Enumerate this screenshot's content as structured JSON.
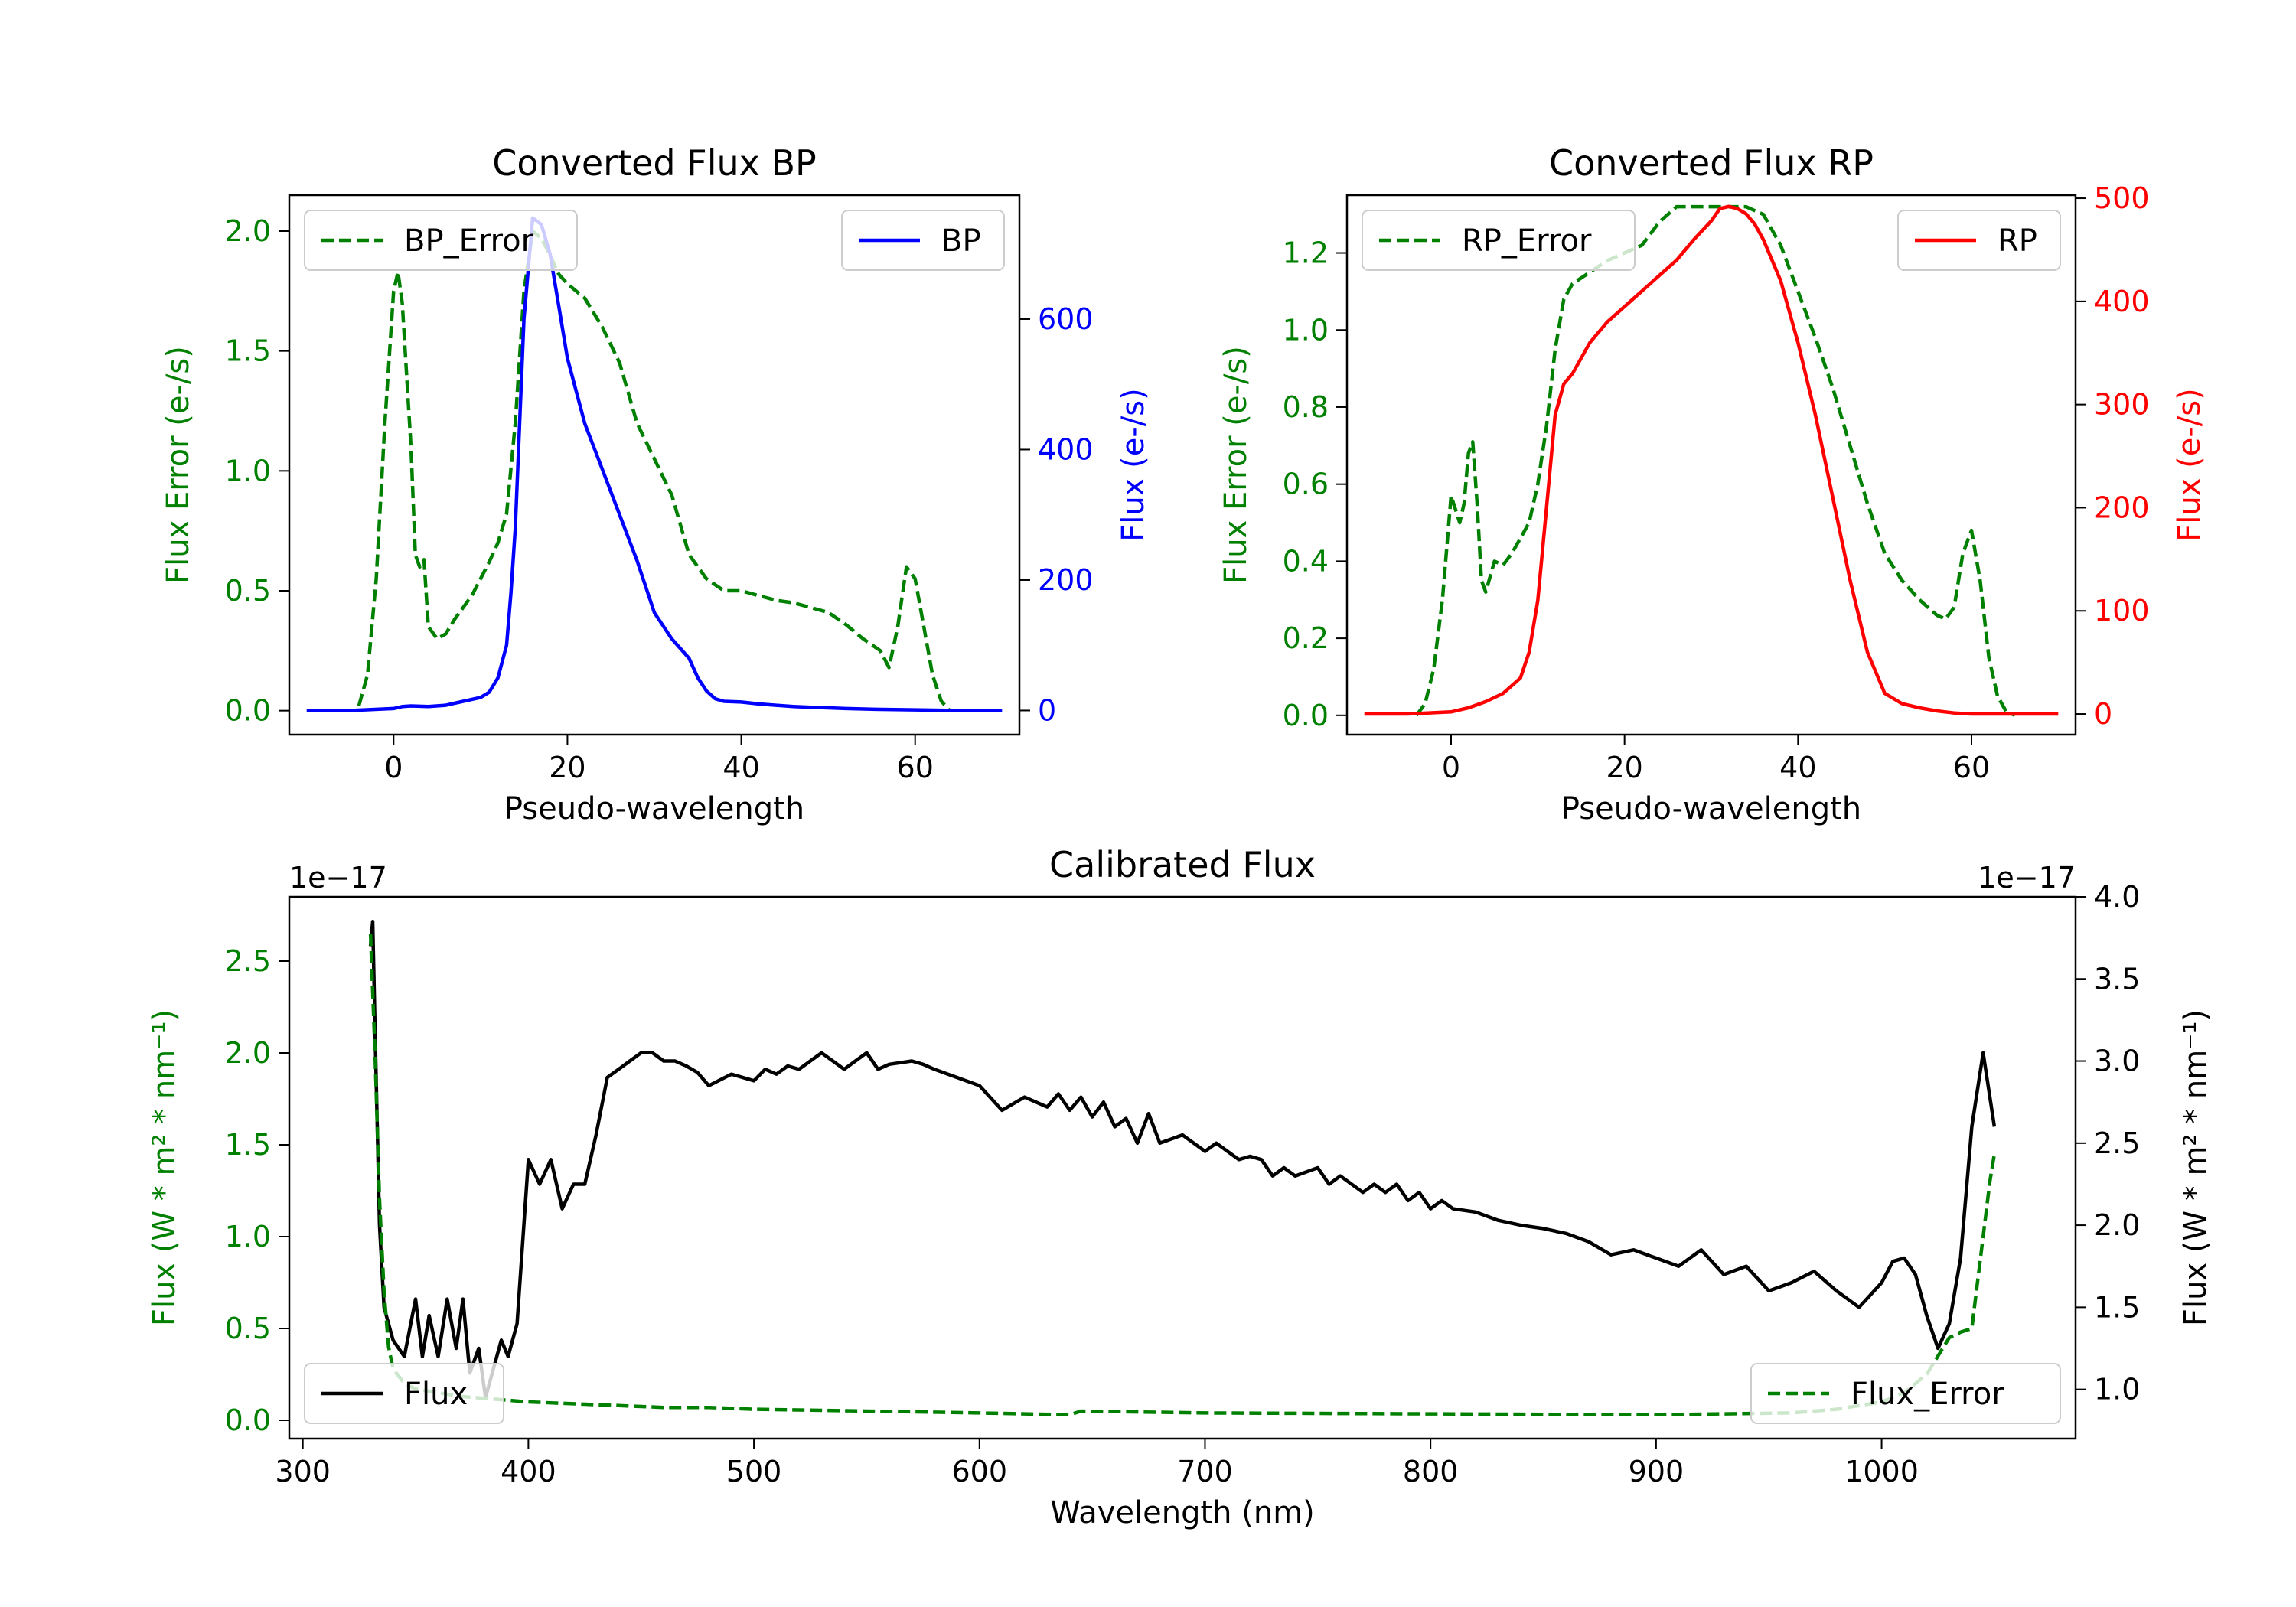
{
  "colors": {
    "bp": "#0000ff",
    "rp": "#ff0000",
    "error": "#008000",
    "flux": "#000000",
    "axis": "#000000"
  },
  "chart_data": [
    {
      "type": "line",
      "title": "Converted Flux BP",
      "xlabel": "Pseudo-wavelength",
      "ylabel_left": "Flux Error (e-/s)",
      "ylabel_right": "Flux (e-/s)",
      "xlim": [
        -12,
        72
      ],
      "ylim_left": [
        -0.1,
        2.15
      ],
      "ylim_right": [
        -37,
        790
      ],
      "xticks": [
        0,
        20,
        40,
        60
      ],
      "yticks_left": [
        "0.0",
        "0.5",
        "1.0",
        "1.5",
        "2.0"
      ],
      "yticks_left_values": [
        0.0,
        0.5,
        1.0,
        1.5,
        2.0
      ],
      "yticks_right": [
        "0",
        "200",
        "400",
        "600"
      ],
      "yticks_right_values": [
        0,
        200,
        400,
        600
      ],
      "legend_left": "BP_Error",
      "legend_right": "BP",
      "series": [
        {
          "name": "BP_Error",
          "axis": "left",
          "style": "dashed",
          "color": "#008000",
          "x": [
            -4,
            -3,
            -2,
            -1,
            0,
            0.5,
            1,
            2,
            2.5,
            3,
            3.5,
            4,
            5,
            6,
            7,
            8,
            9,
            10,
            11,
            12,
            13,
            14,
            15,
            16,
            17,
            18,
            19,
            20,
            22,
            24,
            26,
            28,
            30,
            32,
            34,
            36,
            38,
            40,
            42,
            44,
            46,
            48,
            50,
            52,
            54,
            56,
            57,
            58,
            59,
            60,
            61,
            62,
            63,
            64,
            65
          ],
          "y": [
            0.02,
            0.15,
            0.55,
            1.2,
            1.75,
            1.83,
            1.7,
            1.1,
            0.65,
            0.6,
            0.63,
            0.35,
            0.3,
            0.32,
            0.38,
            0.43,
            0.48,
            0.55,
            0.62,
            0.7,
            0.82,
            1.2,
            1.75,
            2.0,
            1.97,
            1.9,
            1.82,
            1.78,
            1.72,
            1.6,
            1.45,
            1.2,
            1.05,
            0.9,
            0.65,
            0.55,
            0.5,
            0.5,
            0.48,
            0.46,
            0.45,
            0.43,
            0.41,
            0.36,
            0.3,
            0.25,
            0.18,
            0.35,
            0.6,
            0.55,
            0.35,
            0.15,
            0.04,
            0.0,
            0.0
          ]
        },
        {
          "name": "BP",
          "axis": "right",
          "style": "solid",
          "color": "#0000ff",
          "x": [
            -10,
            -5,
            0,
            1,
            2,
            4,
            6,
            8,
            10,
            11,
            12,
            13,
            13.5,
            14,
            15,
            16,
            17,
            18,
            19,
            20,
            22,
            24,
            26,
            28,
            30,
            32,
            34,
            35,
            36,
            37,
            38,
            40,
            42,
            44,
            46,
            48,
            50,
            52,
            55,
            60,
            65,
            70
          ],
          "y": [
            0,
            0,
            3,
            6,
            7,
            6,
            8,
            14,
            20,
            28,
            50,
            100,
            180,
            280,
            600,
            755,
            745,
            700,
            620,
            540,
            440,
            370,
            300,
            230,
            150,
            110,
            80,
            50,
            30,
            18,
            14,
            13,
            10,
            8,
            6,
            5,
            4,
            3,
            2,
            1,
            0,
            0
          ]
        }
      ]
    },
    {
      "type": "line",
      "title": "Converted Flux RP",
      "xlabel": "Pseudo-wavelength",
      "ylabel_left": "Flux Error (e-/s)",
      "ylabel_right": "Flux (e-/s)",
      "xlim": [
        -12,
        72
      ],
      "ylim_left": [
        -0.05,
        1.35
      ],
      "ylim_right": [
        -20,
        503
      ],
      "xticks": [
        0,
        20,
        40,
        60
      ],
      "yticks_left": [
        "0.0",
        "0.2",
        "0.4",
        "0.6",
        "0.8",
        "1.0",
        "1.2"
      ],
      "yticks_left_values": [
        0.0,
        0.2,
        0.4,
        0.6,
        0.8,
        1.0,
        1.2
      ],
      "yticks_right": [
        "0",
        "100",
        "200",
        "300",
        "400",
        "500"
      ],
      "yticks_right_values": [
        0,
        100,
        200,
        300,
        400,
        500
      ],
      "legend_left": "RP_Error",
      "legend_right": "RP",
      "series": [
        {
          "name": "RP_Error",
          "axis": "left",
          "style": "dashed",
          "color": "#008000",
          "x": [
            -4,
            -3,
            -2,
            -1,
            0,
            1,
            1.5,
            2,
            2.5,
            3,
            3.5,
            4,
            5,
            6,
            7,
            8,
            9,
            10,
            11,
            12,
            13,
            14,
            16,
            18,
            20,
            22,
            24,
            26,
            28,
            30,
            32,
            34,
            36,
            38,
            40,
            42,
            44,
            46,
            48,
            50,
            52,
            54,
            55,
            56,
            57,
            58,
            59,
            60,
            61,
            62,
            63,
            64,
            65
          ],
          "y": [
            0.0,
            0.03,
            0.12,
            0.3,
            0.57,
            0.5,
            0.55,
            0.68,
            0.71,
            0.55,
            0.35,
            0.32,
            0.4,
            0.39,
            0.42,
            0.46,
            0.5,
            0.6,
            0.75,
            0.95,
            1.08,
            1.12,
            1.15,
            1.18,
            1.2,
            1.22,
            1.28,
            1.32,
            1.32,
            1.32,
            1.32,
            1.32,
            1.3,
            1.22,
            1.1,
            0.98,
            0.85,
            0.7,
            0.55,
            0.42,
            0.35,
            0.3,
            0.28,
            0.26,
            0.25,
            0.28,
            0.42,
            0.48,
            0.35,
            0.15,
            0.05,
            0.01,
            0.0
          ]
        },
        {
          "name": "RP",
          "axis": "right",
          "style": "solid",
          "color": "#ff0000",
          "x": [
            -10,
            -5,
            0,
            2,
            4,
            6,
            8,
            9,
            10,
            11,
            12,
            13,
            14,
            16,
            18,
            20,
            22,
            24,
            26,
            28,
            30,
            31,
            32,
            33,
            34,
            35,
            36,
            38,
            40,
            42,
            44,
            46,
            48,
            50,
            52,
            54,
            56,
            58,
            60,
            65,
            70
          ],
          "y": [
            0,
            0,
            2,
            6,
            12,
            20,
            35,
            60,
            110,
            200,
            290,
            320,
            330,
            360,
            380,
            395,
            410,
            425,
            440,
            460,
            478,
            490,
            492,
            490,
            485,
            475,
            460,
            420,
            360,
            290,
            210,
            130,
            60,
            20,
            10,
            6,
            3,
            1,
            0,
            0,
            0
          ]
        }
      ]
    },
    {
      "type": "line",
      "title": "Calibrated Flux",
      "xlabel": "Wavelength (nm)",
      "ylabel_left": "Flux (W * m² * nm⁻¹)",
      "ylabel_right": "Flux (W * m² * nm⁻¹)",
      "offset_left": "1e−17",
      "offset_right": "1e−17",
      "xlim": [
        294,
        1086
      ],
      "ylim_left": [
        -0.1,
        2.85
      ],
      "ylim_right": [
        0.7,
        4.0
      ],
      "xticks": [
        300,
        400,
        500,
        600,
        700,
        800,
        900,
        1000
      ],
      "yticks_left": [
        "0.0",
        "0.5",
        "1.0",
        "1.5",
        "2.0",
        "2.5"
      ],
      "yticks_left_values": [
        0.0,
        0.5,
        1.0,
        1.5,
        2.0,
        2.5
      ],
      "yticks_right": [
        "1.0",
        "1.5",
        "2.0",
        "2.5",
        "3.0",
        "3.5",
        "4.0"
      ],
      "yticks_right_values": [
        1.0,
        1.5,
        2.0,
        2.5,
        3.0,
        3.5,
        4.0
      ],
      "legend_left": "Flux",
      "legend_right": "Flux_Error",
      "series": [
        {
          "name": "Flux",
          "axis": "right",
          "style": "solid",
          "color": "#000000",
          "x": [
            330,
            331,
            332,
            334,
            336,
            340,
            345,
            350,
            353,
            356,
            360,
            364,
            368,
            371,
            374,
            378,
            381,
            384,
            388,
            391,
            395,
            400,
            405,
            410,
            415,
            420,
            425,
            430,
            435,
            440,
            445,
            450,
            455,
            460,
            465,
            470,
            475,
            480,
            490,
            500,
            505,
            510,
            515,
            520,
            525,
            530,
            540,
            545,
            550,
            555,
            560,
            570,
            575,
            580,
            590,
            600,
            610,
            620,
            630,
            635,
            640,
            645,
            650,
            655,
            660,
            665,
            670,
            675,
            680,
            690,
            700,
            705,
            710,
            715,
            720,
            725,
            730,
            735,
            740,
            750,
            755,
            760,
            770,
            775,
            780,
            785,
            790,
            795,
            800,
            805,
            810,
            820,
            830,
            840,
            850,
            860,
            870,
            880,
            890,
            900,
            910,
            920,
            930,
            940,
            950,
            960,
            970,
            980,
            990,
            1000,
            1005,
            1010,
            1015,
            1020,
            1025,
            1030,
            1035,
            1040,
            1045,
            1050
          ],
          "y": [
            3.7,
            3.85,
            3.2,
            2.0,
            1.5,
            1.3,
            1.2,
            1.55,
            1.2,
            1.45,
            1.2,
            1.55,
            1.25,
            1.55,
            1.1,
            1.25,
            0.95,
            1.1,
            1.3,
            1.2,
            1.4,
            2.4,
            2.25,
            2.4,
            2.1,
            2.25,
            2.25,
            2.55,
            2.9,
            2.95,
            3.0,
            3.05,
            3.05,
            3.0,
            3.0,
            2.97,
            2.93,
            2.85,
            2.92,
            2.88,
            2.95,
            2.92,
            2.97,
            2.95,
            3.0,
            3.05,
            2.95,
            3.0,
            3.05,
            2.95,
            2.98,
            3.0,
            2.98,
            2.95,
            2.9,
            2.85,
            2.7,
            2.78,
            2.72,
            2.8,
            2.7,
            2.78,
            2.66,
            2.75,
            2.6,
            2.65,
            2.5,
            2.68,
            2.5,
            2.55,
            2.45,
            2.5,
            2.45,
            2.4,
            2.42,
            2.4,
            2.3,
            2.35,
            2.3,
            2.35,
            2.25,
            2.3,
            2.2,
            2.25,
            2.2,
            2.25,
            2.15,
            2.2,
            2.1,
            2.15,
            2.1,
            2.08,
            2.03,
            2.0,
            1.98,
            1.95,
            1.9,
            1.82,
            1.85,
            1.8,
            1.75,
            1.85,
            1.7,
            1.75,
            1.6,
            1.65,
            1.72,
            1.6,
            1.5,
            1.65,
            1.78,
            1.8,
            1.7,
            1.45,
            1.25,
            1.4,
            1.8,
            2.6,
            3.05,
            2.6
          ]
        },
        {
          "name": "Flux_Error",
          "axis": "left",
          "style": "dashed",
          "color": "#008000",
          "x": [
            330,
            332,
            334,
            336,
            338,
            340,
            345,
            350,
            360,
            370,
            380,
            390,
            400,
            420,
            440,
            460,
            480,
            500,
            550,
            600,
            640,
            645,
            700,
            800,
            900,
            960,
            980,
            1000,
            1010,
            1020,
            1025,
            1030,
            1035,
            1040,
            1042,
            1045,
            1048,
            1050
          ],
          "y": [
            2.65,
            2.0,
            1.2,
            0.7,
            0.4,
            0.28,
            0.2,
            0.17,
            0.15,
            0.13,
            0.12,
            0.11,
            0.1,
            0.09,
            0.08,
            0.07,
            0.07,
            0.06,
            0.05,
            0.04,
            0.03,
            0.05,
            0.04,
            0.035,
            0.03,
            0.04,
            0.06,
            0.1,
            0.15,
            0.25,
            0.35,
            0.45,
            0.48,
            0.5,
            0.7,
            1.0,
            1.3,
            1.45
          ]
        }
      ]
    }
  ]
}
